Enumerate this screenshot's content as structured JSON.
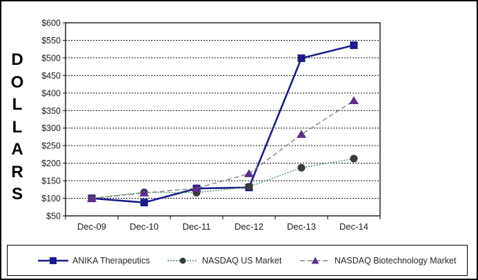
{
  "chart_data": {
    "type": "line",
    "title": "",
    "ylabel": "DOLLARS",
    "xlabel": "",
    "categories": [
      "Dec-09",
      "Dec-10",
      "Dec-11",
      "Dec-12",
      "Dec-13",
      "Dec-14"
    ],
    "y_ticks": [
      "$600",
      "$550",
      "$500",
      "$450",
      "$400",
      "$350",
      "$300",
      "$250",
      "$200",
      "$150",
      "$100",
      "$50"
    ],
    "ylim": [
      50,
      600
    ],
    "grid": "horizontal-dashed",
    "legend_position": "bottom",
    "series": [
      {
        "name": "ANIKA Therapeutics",
        "marker": "square",
        "line_style": "solid",
        "color": "#1A1A8C",
        "marker_color": "#1A1A8C",
        "values": [
          100,
          88,
          128,
          131,
          499,
          536
        ]
      },
      {
        "name": "NASDAQ US Market",
        "marker": "circle",
        "line_style": "dotted",
        "color": "#3C8C50",
        "marker_color": "#3A3A3A",
        "values": [
          100,
          117,
          116,
          133,
          187,
          213
        ]
      },
      {
        "name": "NASDAQ Biotechnology Market",
        "marker": "triangle",
        "line_style": "dashed",
        "color": "#7F7F7F",
        "marker_color": "#5C2D91",
        "values": [
          100,
          115,
          129,
          170,
          282,
          378
        ]
      }
    ]
  }
}
